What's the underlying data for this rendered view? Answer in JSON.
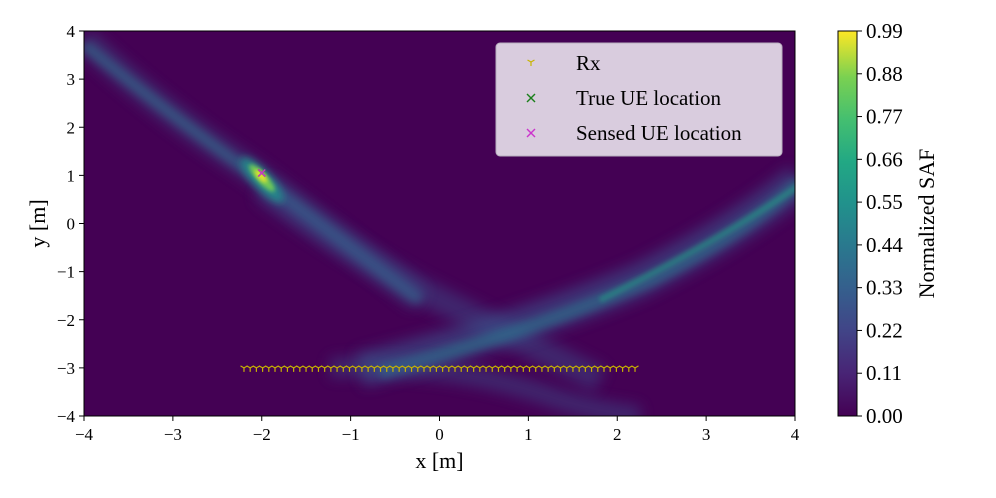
{
  "chart_data": {
    "type": "heatmap",
    "title": "",
    "xlabel": "x [m]",
    "ylabel": "y [m]",
    "xlim": [
      -4,
      4
    ],
    "ylim": [
      -4,
      4
    ],
    "xticks": [
      -4,
      -3,
      -2,
      -1,
      0,
      1,
      2,
      3,
      4
    ],
    "yticks": [
      -4,
      -3,
      -2,
      -1,
      0,
      1,
      2,
      3,
      4
    ],
    "x_tick_labels": [
      "−4",
      "−3",
      "−2",
      "−1",
      "0",
      "1",
      "2",
      "3",
      "4"
    ],
    "y_tick_labels": [
      "−4",
      "−3",
      "−2",
      "−1",
      "0",
      "1",
      "2",
      "3",
      "4"
    ],
    "colormap": "viridis",
    "colorbar": {
      "label": "Normalized SAF",
      "range": [
        0.0,
        0.99
      ],
      "ticks": [
        0.0,
        0.11,
        0.22,
        0.33,
        0.44,
        0.55,
        0.66,
        0.77,
        0.88,
        0.99
      ],
      "tick_labels": [
        "0.00",
        "0.11",
        "0.22",
        "0.33",
        "0.44",
        "0.55",
        "0.66",
        "0.77",
        "0.88",
        "0.99"
      ]
    },
    "legend": {
      "placement": "top-right",
      "entries": [
        {
          "label": "Rx",
          "marker": "tri_down",
          "color": "#c8b400"
        },
        {
          "label": "True UE location",
          "marker": "x",
          "color": "#1a7f1a"
        },
        {
          "label": "Sensed UE location",
          "marker": "x",
          "color": "#cc33cc"
        }
      ]
    },
    "series": [
      {
        "name": "Rx",
        "marker": "tri_down",
        "color": "#c8b400",
        "y": -3.0,
        "x_start": -2.2,
        "x_end": 2.2,
        "count": 64
      },
      {
        "name": "True UE location",
        "marker": "x",
        "color": "#1a7f1a",
        "x": -2.0,
        "y": 1.05
      },
      {
        "name": "Sensed UE location",
        "marker": "x",
        "color": "#cc33cc",
        "x": -2.0,
        "y": 1.05
      }
    ],
    "peak": {
      "x": -2.0,
      "y": 1.05,
      "value": 0.99
    }
  }
}
